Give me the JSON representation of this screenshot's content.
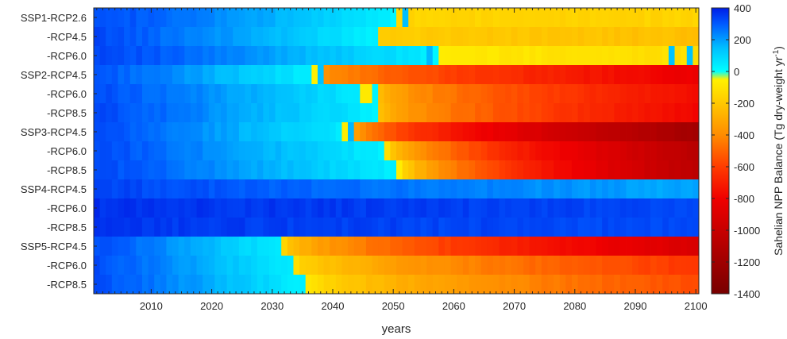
{
  "chart_data": {
    "type": "heatmap",
    "xlabel": "years",
    "colorbar_label": "Sahelian NPP Balance (Tg dry-weight yr",
    "colorbar_label_sup": "-1",
    "colorbar_label_end": ")",
    "x_start": 2001,
    "x_end": 2100,
    "x_ticks": [
      2010,
      2020,
      2030,
      2040,
      2050,
      2060,
      2070,
      2080,
      2090,
      2100
    ],
    "colorbar_ticks": [
      400,
      200,
      0,
      -200,
      -400,
      -600,
      -800,
      -1000,
      -1200,
      -1400
    ],
    "clim": [
      -1400,
      400
    ],
    "rows": [
      {
        "label": "SSP1-RCP2.6",
        "start": 330,
        "cross": 2051,
        "mid": -150,
        "end": -160,
        "blips": [
          {
            "year": 2052,
            "value": 150
          }
        ]
      },
      {
        "label": "-RCP4.5",
        "start": 330,
        "cross": 2048,
        "mid": -170,
        "end": -230,
        "blips": []
      },
      {
        "label": "-RCP6.0",
        "start": 340,
        "cross": 2058,
        "mid": -70,
        "end": -120,
        "blips": [
          {
            "year": 2056,
            "value": 160
          },
          {
            "year": 2096,
            "value": 140
          },
          {
            "year": 2099,
            "value": 140
          },
          {
            "year": 2101,
            "value": 140
          }
        ]
      },
      {
        "label": "SSP2-RCP4.5",
        "start": 310,
        "cross": 2037,
        "mid": -320,
        "end": -820,
        "blips": [
          {
            "year": 2037,
            "value": -60
          },
          {
            "year": 2038,
            "value": 140
          }
        ]
      },
      {
        "label": "-RCP6.0",
        "start": 320,
        "cross": 2048,
        "mid": -250,
        "end": -760,
        "blips": [
          {
            "year": 2045,
            "value": -80
          },
          {
            "year": 2046,
            "value": -80
          }
        ]
      },
      {
        "label": "-RCP8.5",
        "start": 330,
        "cross": 2048,
        "mid": -230,
        "end": -780,
        "blips": []
      },
      {
        "label": "SSP3-RCP4.5",
        "start": 320,
        "cross": 2044,
        "mid": -330,
        "end": -1180,
        "blips": [
          {
            "year": 2042,
            "value": -70
          },
          {
            "year": 2043,
            "value": 160
          }
        ]
      },
      {
        "label": "-RCP6.0",
        "start": 330,
        "cross": 2049,
        "mid": -120,
        "end": -1080,
        "blips": []
      },
      {
        "label": "-RCP8.5",
        "start": 330,
        "cross": 2051,
        "mid": -80,
        "end": -1070,
        "blips": []
      },
      {
        "label": "SSP4-RCP4.5",
        "start": 340,
        "cross": null,
        "mid": null,
        "end": 180,
        "blips": []
      },
      {
        "label": "-RCP6.0",
        "start": 370,
        "cross": null,
        "mid": null,
        "end": 330,
        "blips": []
      },
      {
        "label": "-RCP8.5",
        "start": 360,
        "cross": null,
        "mid": null,
        "end": 320,
        "blips": []
      },
      {
        "label": "SSP5-RCP4.5",
        "start": 320,
        "cross": 2032,
        "mid": -160,
        "end": -920,
        "blips": []
      },
      {
        "label": "-RCP6.0",
        "start": 320,
        "cross": 2034,
        "mid": -120,
        "end": -620,
        "blips": []
      },
      {
        "label": "-RCP8.5",
        "start": 320,
        "cross": 2036,
        "mid": -80,
        "end": -560,
        "blips": []
      }
    ]
  }
}
